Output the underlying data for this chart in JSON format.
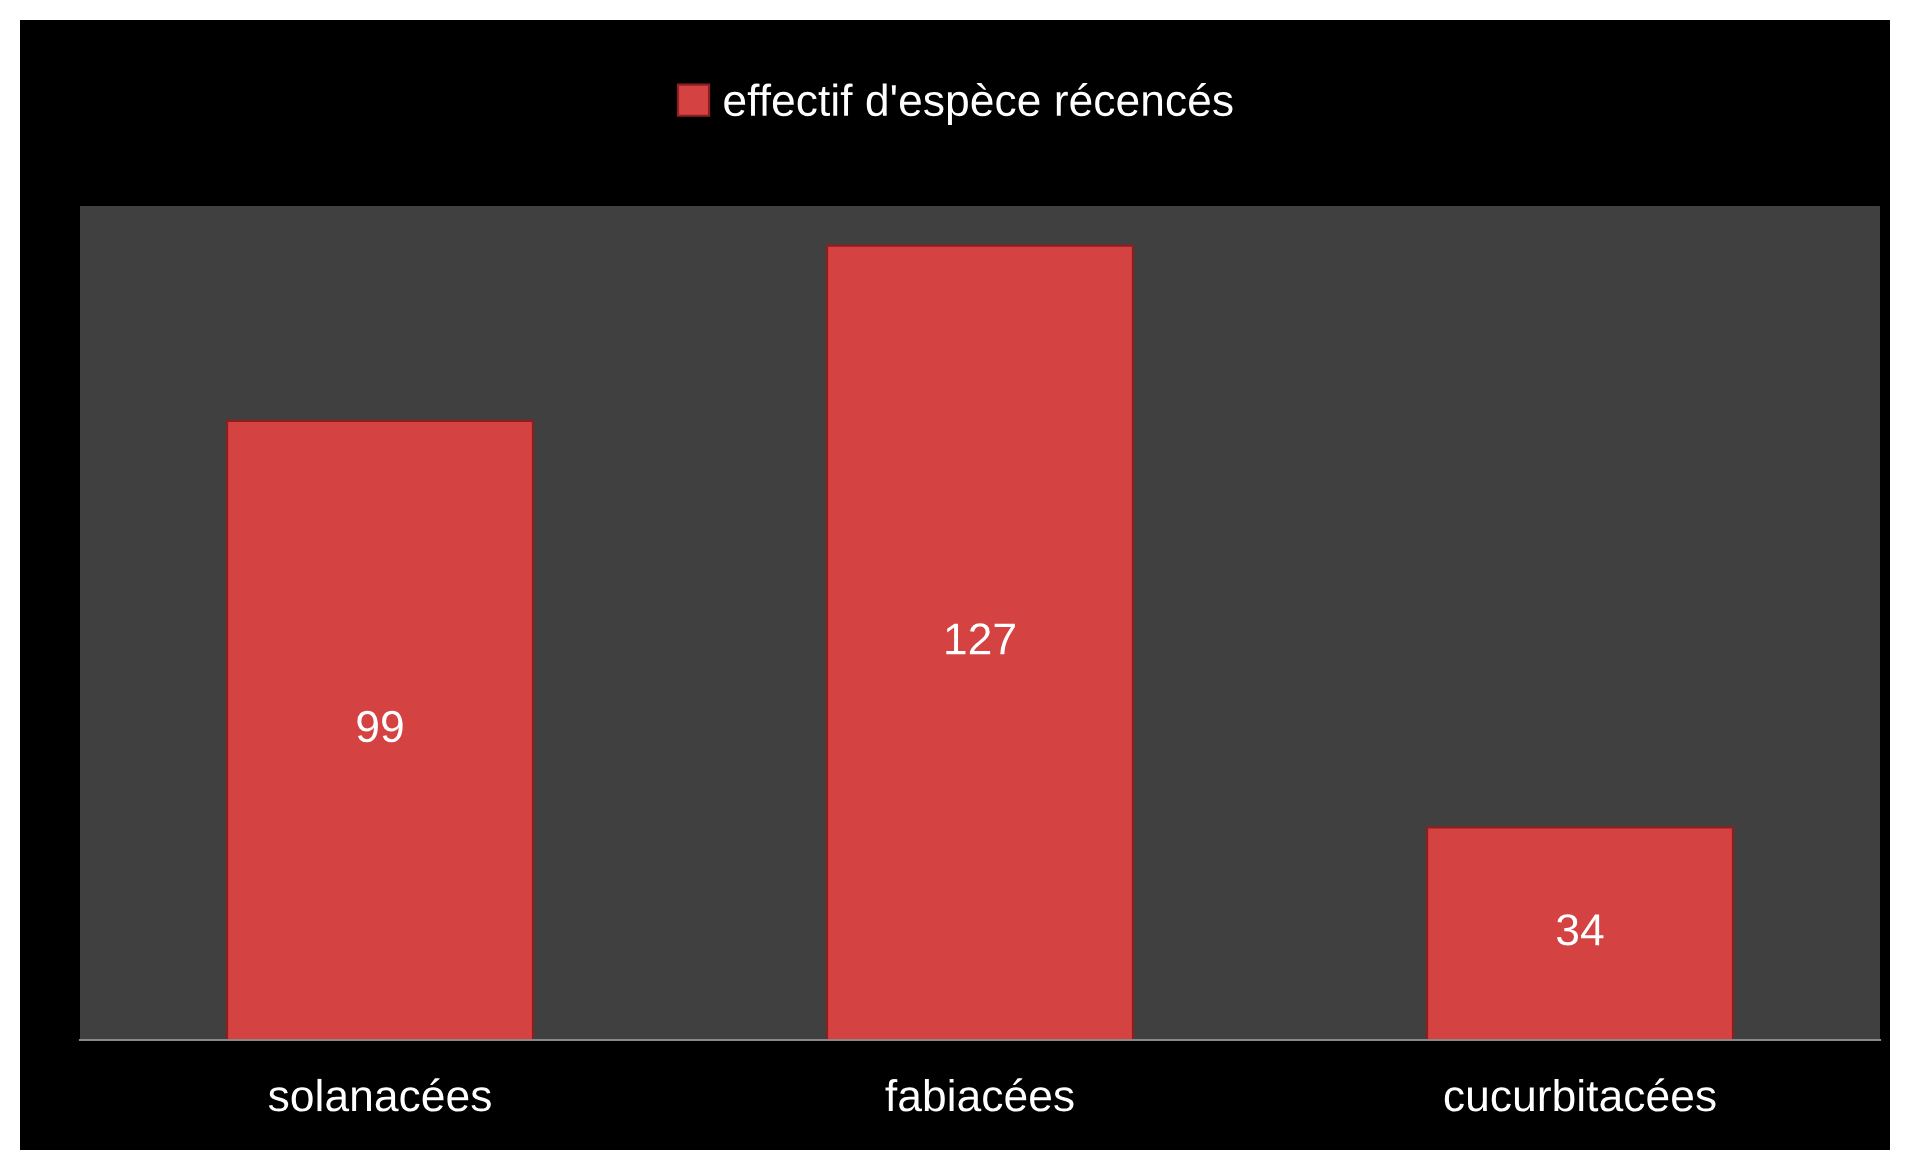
{
  "chart_data": {
    "type": "bar",
    "categories": [
      "solanacées",
      "fabiacées",
      "cucurbitacées"
    ],
    "series": [
      {
        "name": "effectif d'espèce récencés",
        "color": "#d44242",
        "values": [
          99,
          127,
          34
        ]
      }
    ],
    "data_labels": true,
    "legend": "top",
    "grid": false
  }
}
